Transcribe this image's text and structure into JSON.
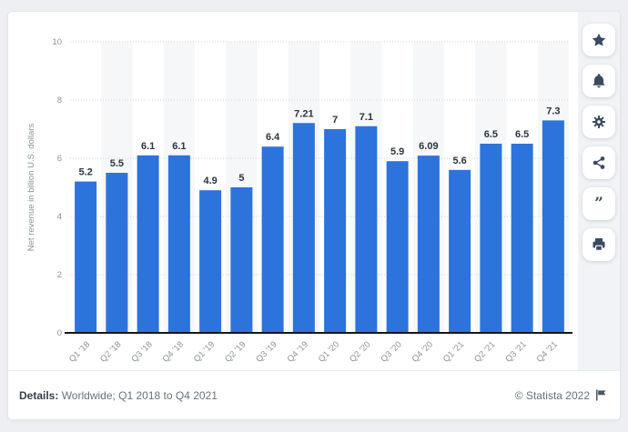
{
  "chart_data": {
    "type": "bar",
    "title": "",
    "xlabel": "",
    "ylabel": "Net revenue in billion U.S. dollars",
    "categories": [
      "Q1 '18",
      "Q2 '18",
      "Q3 '18",
      "Q4 '18",
      "Q1 '19",
      "Q2 '19",
      "Q3 '19",
      "Q4 '19",
      "Q1 '20",
      "Q2 '20",
      "Q3 '20",
      "Q4 '20",
      "Q1 '21",
      "Q2 '21",
      "Q3 '21",
      "Q4 '21"
    ],
    "values": [
      5.2,
      5.5,
      6.1,
      6.1,
      4.9,
      5,
      6.4,
      7.21,
      7,
      7.1,
      5.9,
      6.09,
      5.6,
      6.5,
      6.5,
      7.3
    ],
    "ylim": [
      0,
      10
    ],
    "yticks": [
      0,
      2,
      4,
      6,
      8,
      10
    ],
    "grid": "horizontal-dotted",
    "legend": "none",
    "bar_color": "#2d73dc",
    "value_label_color": "#2b3440",
    "axis_line_color": "#14181c",
    "tick_label_color": "#8a929b",
    "gridline_color": "#cdd2d8",
    "column_stripe_color": "#f6f7f9"
  },
  "toolbar": {
    "buttons": [
      {
        "id": "favorite",
        "icon": "star-icon"
      },
      {
        "id": "alert",
        "icon": "bell-icon"
      },
      {
        "id": "settings",
        "icon": "gear-icon"
      },
      {
        "id": "share",
        "icon": "share-icon"
      },
      {
        "id": "cite",
        "icon": "quote-icon"
      },
      {
        "id": "print",
        "icon": "printer-icon"
      }
    ]
  },
  "footer": {
    "details_label": "Details:",
    "details_text": " Worldwide; Q1 2018 to Q4 2021",
    "copyright": "© Statista 2022",
    "flag_icon": "flag-icon"
  }
}
